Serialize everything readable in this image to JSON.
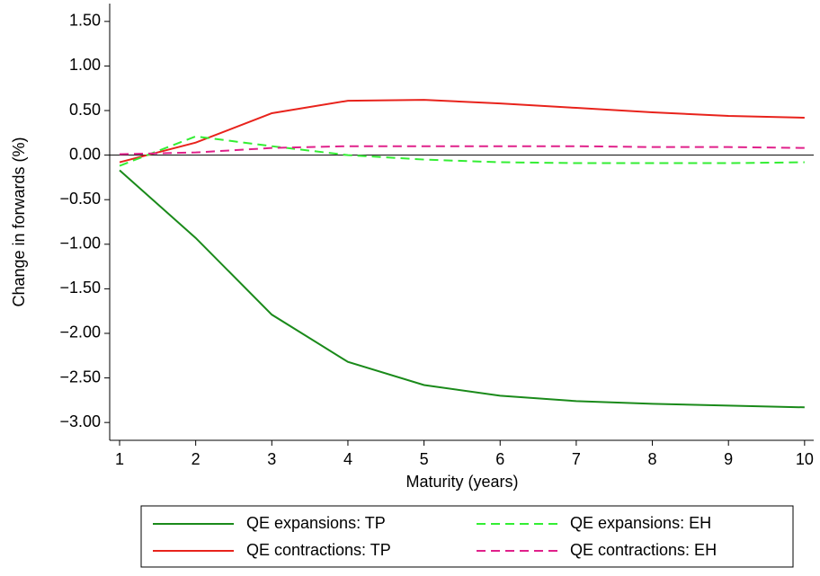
{
  "chart_data": {
    "type": "line",
    "x_label": "Maturity (years)",
    "y_label": "Change in forwards (%)",
    "x": [
      1,
      2,
      3,
      4,
      5,
      6,
      7,
      8,
      9,
      10
    ],
    "xlim": [
      0.87,
      10.12
    ],
    "xticks": [
      1,
      2,
      3,
      4,
      5,
      6,
      7,
      8,
      9,
      10
    ],
    "ylim": [
      -3.2,
      1.7
    ],
    "yticks": [
      {
        "value": 1.5,
        "label": "1.50"
      },
      {
        "value": 1,
        "label": "1.00"
      },
      {
        "value": 0.5,
        "label": "0.50"
      },
      {
        "value": 0,
        "label": "0.00"
      },
      {
        "value": -0.5,
        "label": "−0.50"
      },
      {
        "value": -1,
        "label": "−1.00"
      },
      {
        "value": -1.5,
        "label": "−1.50"
      },
      {
        "value": -2,
        "label": "−2.00"
      },
      {
        "value": -2.5,
        "label": "−2.50"
      },
      {
        "value": -3,
        "label": "−3.00"
      }
    ],
    "hline": 0,
    "series": [
      {
        "name": "QE expansions: TP",
        "color": "#1a8a1a",
        "dash": false,
        "values": [
          -0.17,
          -0.93,
          -1.79,
          -2.32,
          -2.58,
          -2.7,
          -2.76,
          -2.79,
          -2.81,
          -2.83
        ]
      },
      {
        "name": "QE contractions: TP",
        "color": "#e8231c",
        "dash": false,
        "values": [
          -0.08,
          0.14,
          0.47,
          0.61,
          0.62,
          0.58,
          0.53,
          0.48,
          0.44,
          0.42
        ]
      },
      {
        "name": "QE expansions: EH",
        "color": "#33ee33",
        "dash": true,
        "values": [
          -0.12,
          0.21,
          0.1,
          0.0,
          -0.05,
          -0.08,
          -0.09,
          -0.09,
          -0.09,
          -0.08
        ]
      },
      {
        "name": "QE contractions: EH",
        "color": "#e0208a",
        "dash": true,
        "values": [
          0.01,
          0.03,
          0.08,
          0.1,
          0.1,
          0.1,
          0.1,
          0.09,
          0.09,
          0.08
        ]
      }
    ]
  }
}
